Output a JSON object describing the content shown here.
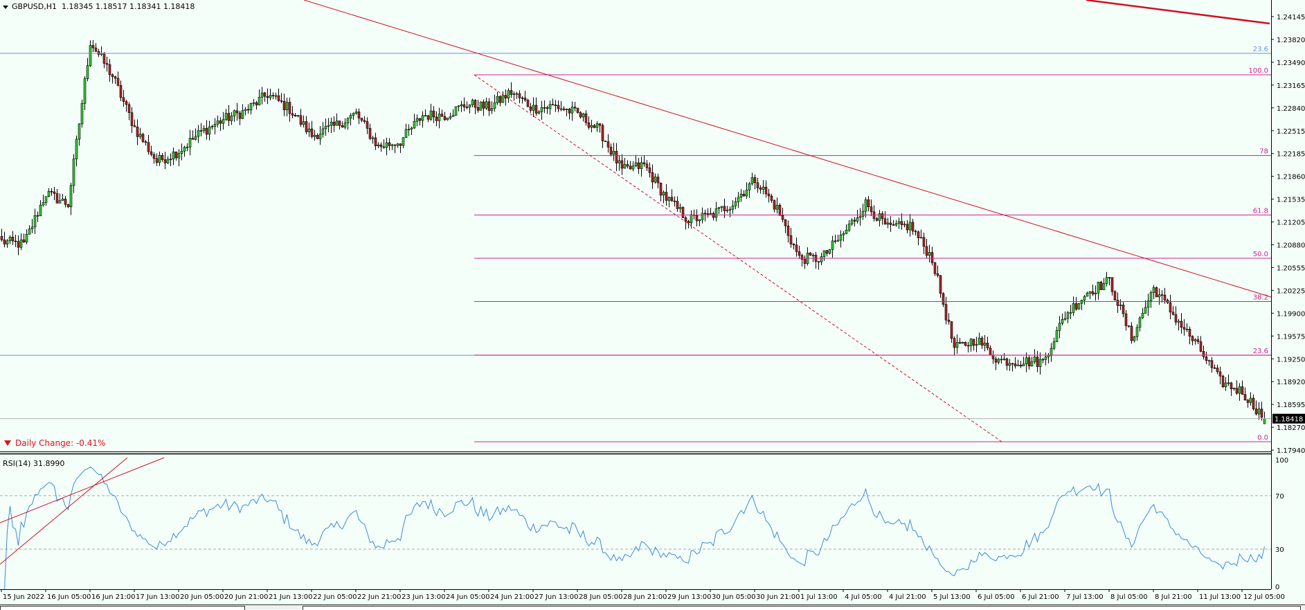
{
  "header": {
    "symbol_timeframe": "GBPUSD,H1",
    "ohlc": "1.18345 1.18517 1.18341 1.18418"
  },
  "daily_change": "Daily Change: -0.41%",
  "rsi_label": "RSI(14) 31.8990",
  "current_price": "1.18418",
  "colors": {
    "background": "#f5fffa",
    "bull_candle": "#32cd32",
    "bear_candle": "#b22222",
    "trendline": "#d01020",
    "fibo": "#d0208a",
    "horizontal_line": "#6b8fd6",
    "rsi_line": "#3a8ad6"
  },
  "chart_data": {
    "type": "candlestick",
    "timeframe": "H1",
    "price_axis_ticks": [
      "1.24145",
      "1.23820",
      "1.23490",
      "1.23165",
      "1.22840",
      "1.22515",
      "1.22185",
      "1.21860",
      "1.21535",
      "1.21205",
      "1.20880",
      "1.20555",
      "1.20225",
      "1.19900",
      "1.19575",
      "1.19250",
      "1.18920",
      "1.18595",
      "1.18270",
      "1.17940"
    ],
    "price_range": [
      1.1794,
      1.24145
    ],
    "time_axis_labels": [
      "15 Jun 2022",
      "16 Jun 05:00",
      "16 Jun 21:00",
      "17 Jun 13:00",
      "20 Jun 05:00",
      "20 Jun 21:00",
      "21 Jun 13:00",
      "22 Jun 05:00",
      "22 Jun 21:00",
      "23 Jun 13:00",
      "24 Jun 05:00",
      "24 Jun 21:00",
      "27 Jun 13:00",
      "28 Jun 05:00",
      "28 Jun 21:00",
      "29 Jun 13:00",
      "30 Jun 05:00",
      "30 Jun 21:00",
      "1 Jul 13:00",
      "4 Jul 05:00",
      "4 Jul 21:00",
      "5 Jul 13:00",
      "6 Jul 05:00",
      "6 Jul 21:00",
      "7 Jul 13:00",
      "8 Jul 05:00",
      "8 Jul 21:00",
      "11 Jul 13:00",
      "12 Jul 05:00"
    ],
    "bars_per_time_label": 16,
    "closes_every_8_bars": [
      1.2094,
      1.209,
      1.2163,
      1.2147,
      1.2379,
      1.233,
      1.2256,
      1.2208,
      1.2223,
      1.225,
      1.2268,
      1.228,
      1.2304,
      1.2283,
      1.2245,
      1.2258,
      1.2276,
      1.2229,
      1.2237,
      1.2274,
      1.2274,
      1.229,
      1.2285,
      1.2307,
      1.2284,
      1.2287,
      1.2276,
      1.2252,
      1.2195,
      1.2203,
      1.2156,
      1.2125,
      1.2131,
      1.2149,
      1.2183,
      1.2141,
      1.207,
      1.207,
      1.2105,
      1.2148,
      1.2113,
      1.2117,
      1.207,
      1.1941,
      1.1955,
      1.1925,
      1.1923,
      1.1923,
      1.1989,
      1.2022,
      1.2038,
      1.1956,
      1.2028,
      1.1985,
      1.1944,
      1.1895,
      1.188,
      1.1842
    ],
    "last_bar": {
      "open": 1.18345,
      "high": 1.18517,
      "low": 1.18341,
      "close": 1.18418
    },
    "horizontal_lines": [
      {
        "price": 1.23622,
        "label": "23.6"
      },
      {
        "price": 1.1932,
        "label": ""
      }
    ],
    "fibonacci": {
      "high": 1.23316,
      "low": 1.18089,
      "levels": [
        {
          "ratio": 1.0,
          "label": "100.0"
        },
        {
          "ratio": 0.78,
          "label": "78"
        },
        {
          "ratio": 0.618,
          "label": "61.8"
        },
        {
          "ratio": 0.5,
          "label": "50.0"
        },
        {
          "ratio": 0.382,
          "label": "38.2"
        },
        {
          "ratio": 0.236,
          "label": "23.6"
        },
        {
          "ratio": 0.0,
          "label": "0.0"
        }
      ]
    },
    "rsi": {
      "period": 14,
      "value": 31.899,
      "range": [
        0,
        100
      ],
      "levels": [
        70,
        30
      ],
      "axis_ticks": [
        "100",
        "70",
        "30",
        "0"
      ]
    },
    "grid": false
  }
}
